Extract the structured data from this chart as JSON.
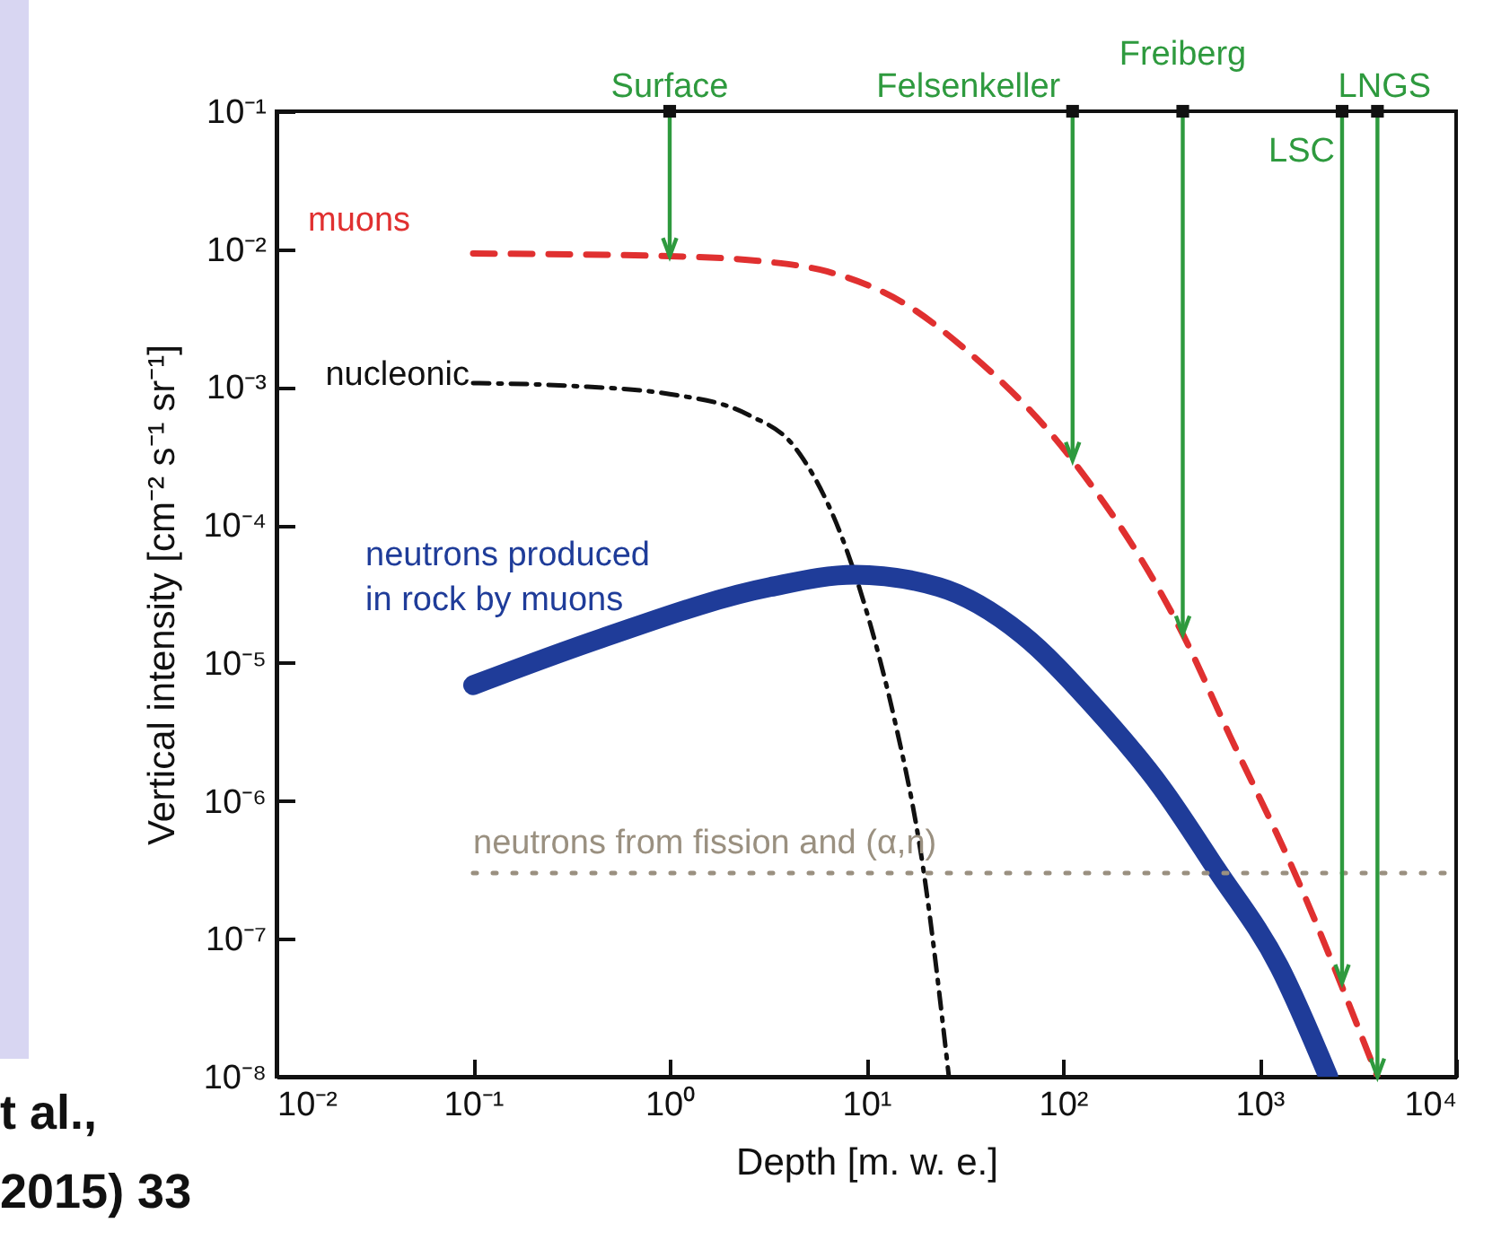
{
  "chart_data": {
    "type": "line",
    "xlabel": "Depth [m. w. e.]",
    "ylabel": "Vertical intensity [cm⁻² s⁻¹ sr⁻¹]",
    "log": "xy",
    "grid": false,
    "marker": "none",
    "xlim": [
      0.01,
      10000
    ],
    "ylim": [
      1e-08,
      0.1
    ],
    "xticks": [
      {
        "value": 0.01,
        "label": "10⁻²"
      },
      {
        "value": 0.1,
        "label": "10⁻¹"
      },
      {
        "value": 1,
        "label": "10⁰"
      },
      {
        "value": 10,
        "label": "10¹"
      },
      {
        "value": 100,
        "label": "10²"
      },
      {
        "value": 1000,
        "label": "10³"
      },
      {
        "value": 10000,
        "label": "10⁴"
      }
    ],
    "yticks": [
      {
        "value": 1e-08,
        "label": "10⁻⁸"
      },
      {
        "value": 1e-07,
        "label": "10⁻⁷"
      },
      {
        "value": 1e-06,
        "label": "10⁻⁶"
      },
      {
        "value": 1e-05,
        "label": "10⁻⁵"
      },
      {
        "value": 0.0001,
        "label": "10⁻⁴"
      },
      {
        "value": 0.001,
        "label": "10⁻³"
      },
      {
        "value": 0.01,
        "label": "10⁻²"
      },
      {
        "value": 0.1,
        "label": "10⁻¹"
      }
    ],
    "series": [
      {
        "name": "muons",
        "color": "#e03030",
        "line_style": "dashed",
        "x": [
          0.1,
          1,
          3.16,
          6.3,
          15.8,
          31.6,
          112,
          407,
          708,
          1480,
          3980
        ],
        "values": [
          0.0093,
          0.0089,
          0.0081,
          0.0069,
          0.004,
          0.0019,
          0.000295,
          1.62e-05,
          2.95e-06,
          3.2e-07,
          1e-08
        ]
      },
      {
        "name": "nucleonic",
        "color": "#111111",
        "line_style": "dashdot",
        "x": [
          0.1,
          0.316,
          1,
          2.51,
          4.37,
          7.94,
          11.7,
          13.8,
          19.5,
          26.3
        ],
        "values": [
          0.00107,
          0.00102,
          0.00089,
          0.00063,
          0.00036,
          6.6e-05,
          1.07e-05,
          4.1e-06,
          3.2e-07,
          1e-08
        ]
      },
      {
        "name": "neutrons produced in rock by muons",
        "color": "#1f3c99",
        "line_style": "solid",
        "x": [
          0.1,
          0.45,
          3.24,
          8.7,
          23.4,
          61.7,
          141,
          316,
          603,
          1259,
          2239
        ],
        "values": [
          6.9e-06,
          1.51e-05,
          3.55e-05,
          4.37e-05,
          3.55e-05,
          1.62e-05,
          5e-06,
          1.26e-06,
          3.2e-07,
          6.3e-08,
          1e-08
        ]
      },
      {
        "name": "neutrons from fission and (α,n)",
        "color": "#9a9080",
        "line_style": "dotted",
        "x": [
          0.1,
          10000
        ],
        "values": [
          3e-07,
          3e-07
        ]
      }
    ],
    "annotations": [
      {
        "text": "Surface",
        "x": 1,
        "y": 0.0089
      },
      {
        "text": "Felsenkeller",
        "x": 112,
        "y": 0.000295
      },
      {
        "text": "Freiberg",
        "x": 407,
        "y": 1.62e-05
      },
      {
        "text": "LSC",
        "x": 2630,
        "y": 4.8e-08
      },
      {
        "text": "LNGS",
        "x": 3980,
        "y": 1e-08
      },
      "t al.,",
      "2015) 33"
    ]
  }
}
